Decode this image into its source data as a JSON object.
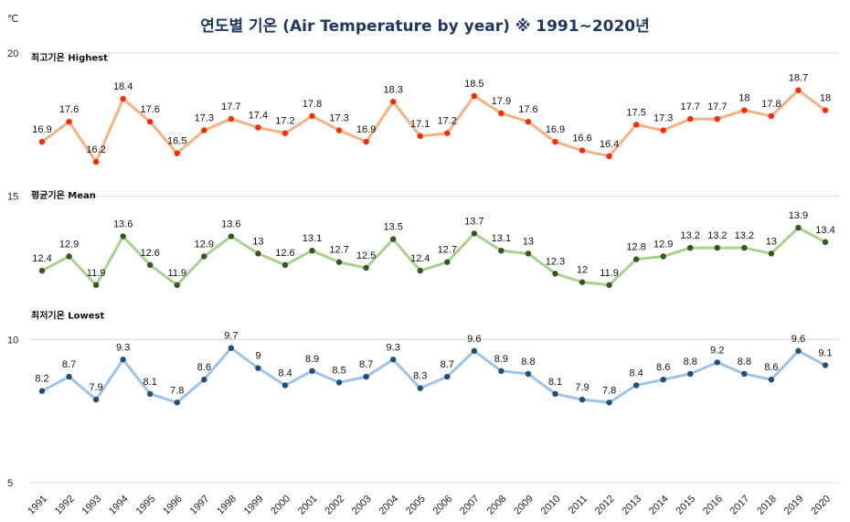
{
  "chart_data": {
    "type": "line",
    "title": "연도별 기온 (Air Temperature by year) ※ 1991~2020년",
    "ylabel": "℃",
    "ylim": [
      5,
      20
    ],
    "yticks": [
      "5",
      "10",
      "15",
      "20"
    ],
    "grid": true,
    "x": [
      "1991",
      "1992",
      "1993",
      "1994",
      "1995",
      "1996",
      "1997",
      "1998",
      "1999",
      "2000",
      "2001",
      "2002",
      "2003",
      "2004",
      "2005",
      "2006",
      "2007",
      "2008",
      "2009",
      "2010",
      "2011",
      "2012",
      "2013",
      "2014",
      "2015",
      "2016",
      "2017",
      "2018",
      "2019",
      "2020"
    ],
    "series": [
      {
        "name": "최고기온 Highest",
        "line_color": "#f4b183",
        "marker_color": "#ff2a00",
        "values": [
          16.9,
          17.6,
          16.2,
          18.4,
          17.6,
          16.5,
          17.3,
          17.7,
          17.4,
          17.2,
          17.8,
          17.3,
          16.9,
          18.3,
          17.1,
          17.2,
          18.5,
          17.9,
          17.6,
          16.9,
          16.6,
          16.4,
          17.5,
          17.3,
          17.7,
          17.7,
          18,
          17.8,
          18.7,
          18
        ]
      },
      {
        "name": "평균기온 Mean",
        "line_color": "#a9d18e",
        "marker_color": "#375623",
        "values": [
          12.4,
          12.9,
          11.9,
          13.6,
          12.6,
          11.9,
          12.9,
          13.6,
          13,
          12.6,
          13.1,
          12.7,
          12.5,
          13.5,
          12.4,
          12.7,
          13.7,
          13.1,
          13,
          12.3,
          12,
          11.9,
          12.8,
          12.9,
          13.2,
          13.2,
          13.2,
          13,
          13.9,
          13.4
        ]
      },
      {
        "name": "최저기온 Lowest",
        "line_color": "#9dc3e6",
        "marker_color": "#1f4e79",
        "values": [
          8.2,
          8.7,
          7.9,
          9.3,
          8.1,
          7.8,
          8.6,
          9.7,
          9,
          8.4,
          8.9,
          8.5,
          8.7,
          9.3,
          8.3,
          8.7,
          9.6,
          8.9,
          8.8,
          8.1,
          7.9,
          7.8,
          8.4,
          8.6,
          8.8,
          9.2,
          8.8,
          8.6,
          9.6,
          9.1
        ]
      }
    ]
  }
}
